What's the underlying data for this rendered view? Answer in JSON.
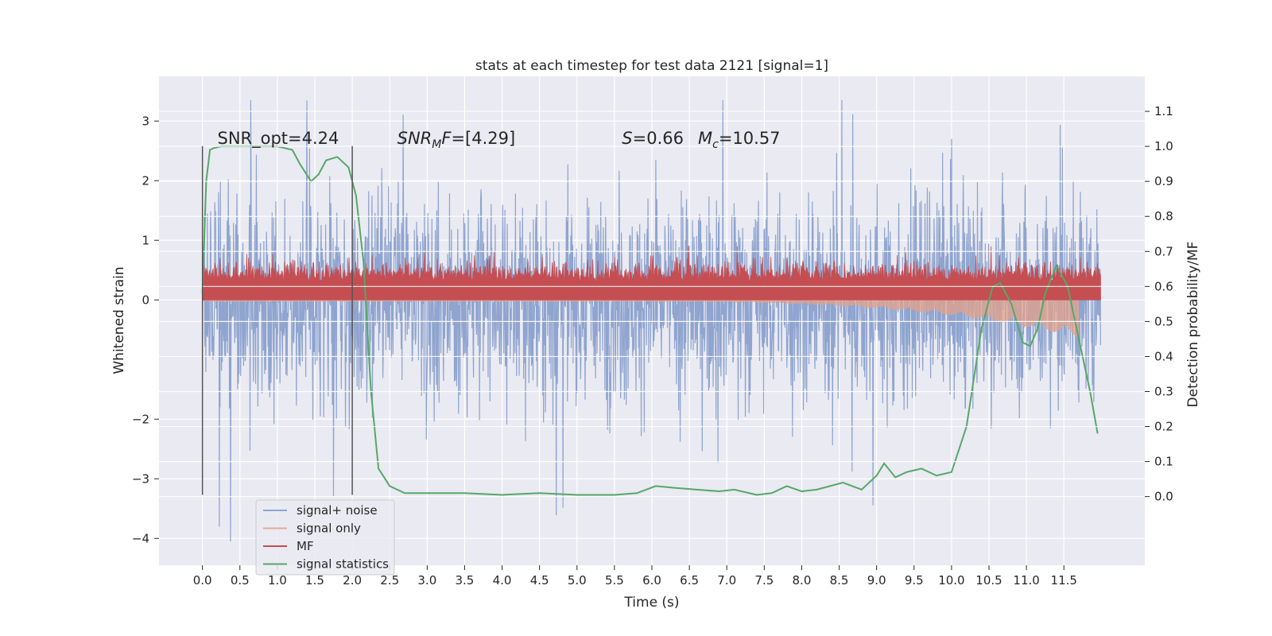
{
  "chart_data": {
    "type": "line",
    "title": "stats at each timestep for test data 2121 [signal=1]",
    "xlabel": "Time (s)",
    "ylabel": "Whitened strain",
    "ylabel_right": "Detection probability/MF",
    "xlim": [
      -0.58,
      12.58
    ],
    "ylim": [
      -4.45,
      3.75
    ],
    "ylim_right": [
      -0.196,
      1.2
    ],
    "x_ticks": [
      "0.0",
      "0.5",
      "1.0",
      "1.5",
      "2.0",
      "2.5",
      "3.0",
      "3.5",
      "4.0",
      "4.5",
      "5.0",
      "5.5",
      "6.0",
      "6.5",
      "7.0",
      "7.5",
      "8.0",
      "8.5",
      "9.0",
      "9.5",
      "10.0",
      "10.5",
      "11.0",
      "11.5"
    ],
    "y_ticks": [
      "3",
      "2",
      "1",
      "0",
      "−2",
      "−3",
      "−4"
    ],
    "y_ticks_right": [
      "1.1",
      "1.0",
      "0.9",
      "0.8",
      "0.7",
      "0.6",
      "0.5",
      "0.4",
      "0.3",
      "0.2",
      "0.1",
      "0.0"
    ],
    "grid": true,
    "legend_position": "lower-left",
    "series": [
      {
        "name": "signal+ noise",
        "color": "#8fa4cf",
        "description_values": {
          "x_range": [
            0.0,
            12.0
          ],
          "y_approx_range": [
            -4.05,
            3.35
          ]
        }
      },
      {
        "name": "signal only",
        "color": "#e8a98f",
        "description_values": {
          "x_range": [
            0.0,
            11.7
          ],
          "y_approx_range": [
            -0.6,
            0.0
          ]
        }
      },
      {
        "name": "MF",
        "color": "#c44e52",
        "description_values": {
          "x_range": [
            0.0,
            12.0
          ],
          "y_approx_range": [
            0.0,
            0.9
          ]
        }
      },
      {
        "name": "signal statistics",
        "color": "#55a868",
        "axis": "right",
        "x": [
          0.0,
          0.05,
          0.1,
          0.15,
          0.25,
          0.5,
          0.8,
          1.0,
          1.2,
          1.3,
          1.45,
          1.55,
          1.65,
          1.8,
          1.95,
          2.05,
          2.15,
          2.25,
          2.35,
          2.5,
          2.7,
          3.0,
          3.5,
          4.0,
          4.5,
          5.0,
          5.5,
          5.8,
          6.05,
          6.3,
          6.6,
          6.9,
          7.1,
          7.4,
          7.6,
          7.8,
          8.0,
          8.2,
          8.55,
          8.8,
          9.0,
          9.1,
          9.25,
          9.4,
          9.6,
          9.8,
          10.0,
          10.2,
          10.4,
          10.55,
          10.65,
          10.8,
          10.95,
          11.05,
          11.15,
          11.25,
          11.4,
          11.55,
          11.7,
          11.85,
          11.95
        ],
        "y": [
          0.58,
          0.9,
          0.99,
          0.995,
          1.0,
          1.0,
          1.0,
          1.0,
          0.99,
          0.95,
          0.9,
          0.92,
          0.96,
          0.97,
          0.94,
          0.86,
          0.67,
          0.3,
          0.08,
          0.03,
          0.01,
          0.01,
          0.01,
          0.005,
          0.01,
          0.005,
          0.005,
          0.01,
          0.03,
          0.025,
          0.02,
          0.015,
          0.02,
          0.005,
          0.01,
          0.03,
          0.015,
          0.02,
          0.04,
          0.02,
          0.06,
          0.095,
          0.055,
          0.07,
          0.08,
          0.06,
          0.07,
          0.2,
          0.48,
          0.6,
          0.61,
          0.55,
          0.44,
          0.43,
          0.48,
          0.58,
          0.66,
          0.6,
          0.45,
          0.3,
          0.18
        ]
      }
    ],
    "vertical_markers": [
      0.0,
      2.0
    ],
    "annotations": [
      {
        "type": "plain",
        "text": "SNR_opt=4.24",
        "x": 0.2,
        "y": 2.62
      },
      {
        "type": "snrmf",
        "base": "SNR",
        "sub": "M",
        "after": "F=[4.29]",
        "x": 2.6,
        "y": 2.62
      },
      {
        "type": "sm",
        "s_var": "S",
        "s_val": "=0.66",
        "m_var": "M",
        "m_sub": "c",
        "m_val": "=10.57",
        "x": 5.6,
        "y": 2.62
      }
    ]
  }
}
